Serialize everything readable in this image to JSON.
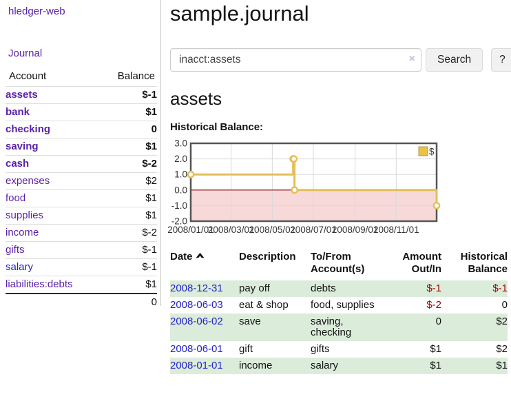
{
  "sidebar": {
    "brand": "hledger-web",
    "journal_link": "Journal",
    "accounts": {
      "col_account": "Account",
      "col_balance": "Balance",
      "rows": [
        {
          "name": "assets",
          "balance": "$-1"
        },
        {
          "name": "bank",
          "balance": "$1"
        },
        {
          "name": "checking",
          "balance": "0"
        },
        {
          "name": "saving",
          "balance": "$1"
        },
        {
          "name": "cash",
          "balance": "$-2"
        },
        {
          "name": "expenses",
          "balance": "$2"
        },
        {
          "name": "food",
          "balance": "$1"
        },
        {
          "name": "supplies",
          "balance": "$1"
        },
        {
          "name": "income",
          "balance": "$-2"
        },
        {
          "name": "gifts",
          "balance": "$-1"
        },
        {
          "name": "salary",
          "balance": "$-1"
        },
        {
          "name": "liabilities:debts",
          "balance": "$1"
        }
      ],
      "total": "0"
    }
  },
  "main": {
    "title": "sample.journal",
    "search": {
      "value": "inacct:assets",
      "clear_icon": "×",
      "search_label": "Search",
      "help_label": "?"
    },
    "account_heading": "assets",
    "section_label": "Historical Balance:"
  },
  "chart_data": {
    "type": "line",
    "step": true,
    "title": "Historical Balance",
    "xlim": [
      "2008-01-01",
      "2008-12-31"
    ],
    "ylim": [
      -2,
      3
    ],
    "grid": true,
    "legend_position": "top-right",
    "legend": [
      {
        "label": "$",
        "color": "#e8c24a"
      }
    ],
    "line_color": "#e3bf57",
    "negative_fill": "#f8d9d9",
    "zero_line_color": "#8b0000",
    "x_ticks": [
      {
        "date": "2008-01-01",
        "label": "2008/01/01"
      },
      {
        "date": "2008-03-01",
        "label": "2008/03/01"
      },
      {
        "date": "2008-05-01",
        "label": "2008/05/01"
      },
      {
        "date": "2008-07-01",
        "label": "2008/07/01"
      },
      {
        "date": "2008-09-01",
        "label": "2008/09/01"
      },
      {
        "date": "2008-11-01",
        "label": "2008/11/01"
      }
    ],
    "y_ticks": [
      {
        "value": 3,
        "label": "3.0"
      },
      {
        "value": 2,
        "label": "2.0"
      },
      {
        "value": 1,
        "label": "1.0"
      },
      {
        "value": 0,
        "label": "0.0"
      },
      {
        "value": -1,
        "label": "-1.0"
      },
      {
        "value": -2,
        "label": "-2.0"
      }
    ],
    "series": [
      {
        "name": "$",
        "points": [
          {
            "date": "2008-01-01",
            "value": 1
          },
          {
            "date": "2008-06-01",
            "value": 2
          },
          {
            "date": "2008-06-02",
            "value": 2
          },
          {
            "date": "2008-06-03",
            "value": 0
          },
          {
            "date": "2008-12-31",
            "value": -1
          }
        ]
      }
    ]
  },
  "register": {
    "col_date": "Date",
    "col_description": "Description",
    "col_accounts": "To/From Account(s)",
    "col_amount": "Amount Out/In",
    "col_balance": "Historical Balance",
    "rows": [
      {
        "date": "2008-12-31",
        "description": "pay off",
        "accounts": "debts",
        "amount": "$-1",
        "balance": "$-1"
      },
      {
        "date": "2008-06-03",
        "description": "eat & shop",
        "accounts": "food, supplies",
        "amount": "$-2",
        "balance": "0"
      },
      {
        "date": "2008-06-02",
        "description": "save",
        "accounts": "saving,\nchecking",
        "amount": "0",
        "balance": "$2"
      },
      {
        "date": "2008-06-01",
        "description": "gift",
        "accounts": "gifts",
        "amount": "$1",
        "balance": "$2"
      },
      {
        "date": "2008-01-01",
        "description": "income",
        "accounts": "salary",
        "amount": "$1",
        "balance": "$1"
      }
    ]
  },
  "colors": {
    "accent_purple": "#5b21a8",
    "link_blue": "#2323cc",
    "negative_strong": "#9e1616",
    "negative_muted": "#b36a6a",
    "row_green": "#dcecdb"
  }
}
